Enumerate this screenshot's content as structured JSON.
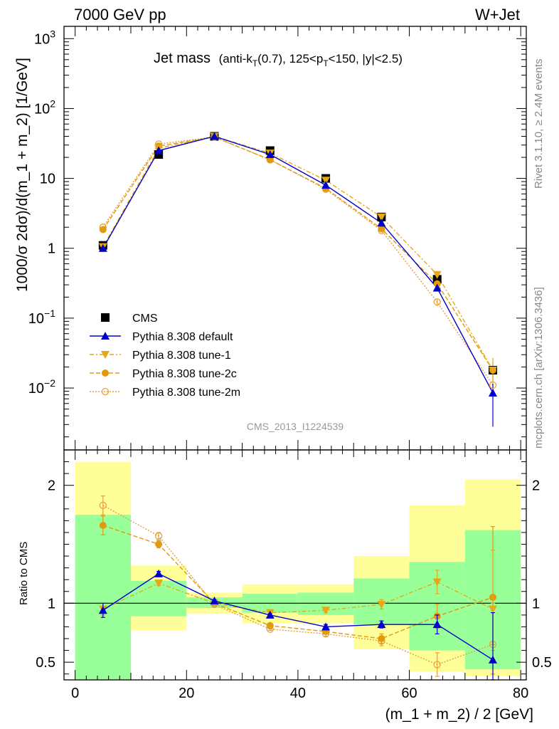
{
  "header": {
    "energy": "7000 GeV pp",
    "process": "W+Jet",
    "title": "Jet mass",
    "title_detail_prefix": "(anti-k",
    "title_detail_sub1": "T",
    "title_detail_mid": "(0.7), 125<p",
    "title_detail_sub2": "T",
    "title_detail_suffix": "<150, |y|<2.5)",
    "analysis_id": "CMS_2013_I1224539",
    "side_label_top": "Rivet 3.1.10, ≥ 2.4M events",
    "side_label_bottom": "mcplots.cern.ch [arXiv:1306.3436]"
  },
  "chart_data": [
    {
      "type": "line",
      "panel": "main",
      "ylabel": "1000/σ 2dσ)/d(m_1 + m_2) [1/GeV]",
      "yscale": "log",
      "ylim": [
        0.0013,
        1500
      ],
      "xlim": [
        -2,
        81
      ],
      "y_ticks": [
        {
          "v": 0.01,
          "base": "10",
          "exp": "−2"
        },
        {
          "v": 0.1,
          "base": "10",
          "exp": "−1"
        },
        {
          "v": 1,
          "base": "1",
          "exp": ""
        },
        {
          "v": 10,
          "base": "10",
          "exp": ""
        },
        {
          "v": 100,
          "base": "10",
          "exp": "2"
        },
        {
          "v": 1000,
          "base": "10",
          "exp": "3"
        }
      ],
      "x": [
        5,
        15,
        25,
        35,
        45,
        55,
        65,
        75
      ],
      "data": {
        "name": "CMS",
        "values": [
          1.1,
          22,
          40,
          25,
          10,
          2.8,
          0.36,
          0.018
        ]
      },
      "series": [
        {
          "name": "Pythia 8.308 default",
          "color": "#0000cc",
          "dash": "",
          "marker": "triangle-up",
          "values": [
            1.0,
            25,
            40,
            22,
            8.0,
            2.3,
            0.27,
            0.0085
          ],
          "err_lo": [
            0.05,
            0.5,
            0.4,
            0.3,
            0.1,
            0.05,
            0.02,
            0.0057
          ],
          "err_hi": [
            0.05,
            0.5,
            0.4,
            0.3,
            0.1,
            0.05,
            0.02,
            0.003
          ]
        },
        {
          "name": "Pythia 8.308 tune-1",
          "color": "#e6a817",
          "dash": "6,3,2,3",
          "marker": "triangle-down",
          "values": [
            1.05,
            27,
            40,
            23,
            9.4,
            2.8,
            0.42,
            0.018
          ],
          "err_lo": [
            0.05,
            0.5,
            0.4,
            0.3,
            0.1,
            0.05,
            0.03,
            0.006
          ],
          "err_hi": [
            0.05,
            0.5,
            0.4,
            0.3,
            0.1,
            0.05,
            0.03,
            0.009
          ]
        },
        {
          "name": "Pythia 8.308 tune-2c",
          "color": "#e09a0b",
          "dash": "6,3",
          "marker": "circle",
          "values": [
            1.85,
            29,
            39,
            18.5,
            7.2,
            1.9,
            0.31,
            0.018
          ],
          "err_lo": [
            0.05,
            0.5,
            0.4,
            0.3,
            0.1,
            0.05,
            0.02,
            0.006
          ],
          "err_hi": [
            0.05,
            0.5,
            0.4,
            0.3,
            0.1,
            0.05,
            0.02,
            0.006
          ]
        },
        {
          "name": "Pythia 8.308 tune-2m",
          "color": "#e6a040",
          "dash": "2,2",
          "marker": "open-circle",
          "values": [
            2.0,
            31,
            39,
            18.5,
            7.0,
            1.8,
            0.17,
            0.011
          ],
          "err_lo": [
            0.05,
            0.5,
            0.4,
            0.3,
            0.1,
            0.05,
            0.02,
            0.004
          ],
          "err_hi": [
            0.05,
            0.5,
            0.4,
            0.3,
            0.1,
            0.05,
            0.02,
            0.004
          ]
        }
      ],
      "legend_position": "lower-left"
    },
    {
      "type": "line",
      "panel": "ratio",
      "ylabel": "Ratio to CMS",
      "xlabel": "(m_1 + m_2) / 2 [GeV]",
      "ylim": [
        0.35,
        2.3
      ],
      "xlim": [
        -2,
        81
      ],
      "y_ticks": [
        0.5,
        1,
        2
      ],
      "x_ticks": [
        0,
        20,
        40,
        60,
        80
      ],
      "x": [
        5,
        15,
        25,
        35,
        45,
        55,
        65,
        75
      ],
      "bins": [
        [
          0,
          10
        ],
        [
          10,
          20
        ],
        [
          20,
          30
        ],
        [
          30,
          40
        ],
        [
          40,
          50
        ],
        [
          50,
          60
        ],
        [
          60,
          70
        ],
        [
          70,
          80
        ]
      ],
      "band_stat": [
        [
          0.35,
          1.75
        ],
        [
          0.89,
          1.19
        ],
        [
          0.96,
          1.05
        ],
        [
          0.92,
          1.08
        ],
        [
          0.9,
          1.09
        ],
        [
          0.82,
          1.21
        ],
        [
          0.6,
          1.35
        ],
        [
          0.44,
          1.62
        ]
      ],
      "band_total": [
        [
          0.35,
          2.2
        ],
        [
          0.77,
          1.32
        ],
        [
          0.91,
          1.09
        ],
        [
          0.83,
          1.16
        ],
        [
          0.83,
          1.16
        ],
        [
          0.61,
          1.4
        ],
        [
          0.42,
          1.83
        ],
        [
          0.38,
          2.05
        ]
      ],
      "series": [
        {
          "name": "Pythia 8.308 default",
          "values": [
            0.94,
            1.25,
            1.02,
            0.9,
            0.8,
            0.82,
            0.82,
            0.52
          ],
          "err_lo": [
            0.06,
            0.02,
            0.01,
            0.01,
            0.02,
            0.03,
            0.08,
            0.17
          ],
          "err_hi": [
            0.06,
            0.02,
            0.01,
            0.01,
            0.02,
            0.03,
            0.08,
            0.4
          ]
        },
        {
          "name": "Pythia 8.308 tune-1",
          "values": [
            0.95,
            1.17,
            1.0,
            0.92,
            0.94,
            0.99,
            1.18,
            0.95
          ],
          "err_lo": [
            0.05,
            0.02,
            0.01,
            0.01,
            0.02,
            0.04,
            0.1,
            0.35
          ],
          "err_hi": [
            0.05,
            0.02,
            0.01,
            0.01,
            0.02,
            0.04,
            0.1,
            0.5
          ]
        },
        {
          "name": "Pythia 8.308 tune-2c",
          "values": [
            1.66,
            1.5,
            1.0,
            0.81,
            0.76,
            0.7,
            0.89,
            1.05
          ],
          "err_lo": [
            0.08,
            0.03,
            0.01,
            0.01,
            0.02,
            0.04,
            0.1,
            0.4
          ],
          "err_hi": [
            0.08,
            0.03,
            0.01,
            0.01,
            0.02,
            0.04,
            0.1,
            0.6
          ]
        },
        {
          "name": "Pythia 8.308 tune-2m",
          "values": [
            1.83,
            1.57,
            0.99,
            0.78,
            0.74,
            0.68,
            0.48,
            0.65
          ],
          "err_lo": [
            0.08,
            0.03,
            0.01,
            0.01,
            0.02,
            0.04,
            0.1,
            0.25
          ],
          "err_hi": [
            0.08,
            0.03,
            0.01,
            0.01,
            0.02,
            0.04,
            0.1,
            0.35
          ]
        }
      ]
    }
  ]
}
